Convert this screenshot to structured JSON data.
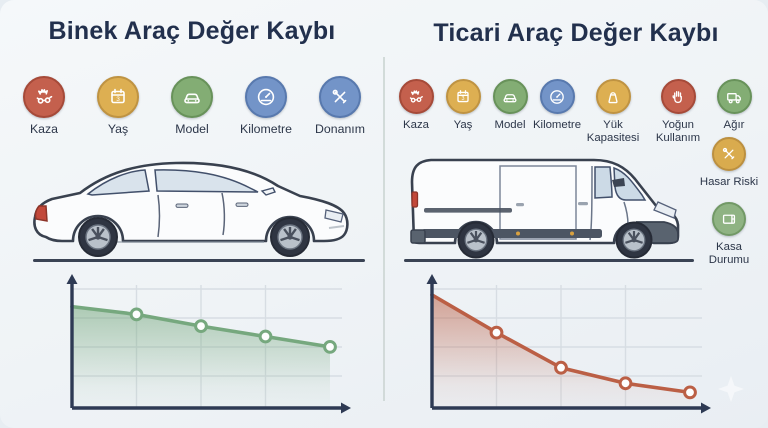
{
  "panels": [
    {
      "id": "binek",
      "title": "Binek Araç Değer Kaybı",
      "vehicle": "sedan",
      "factors": [
        {
          "icon": "crash-icon",
          "label": "Kaza",
          "color": "#c4604d",
          "border": "#a64a39"
        },
        {
          "icon": "calendar-icon",
          "label": "Yaş",
          "color": "#ddaf52",
          "border": "#bf9342"
        },
        {
          "icon": "car-icon",
          "label": "Model",
          "color": "#83ad74",
          "border": "#68925a"
        },
        {
          "icon": "speedometer-icon",
          "label": "Kilometre",
          "color": "#7394c8",
          "border": "#5879ae"
        },
        {
          "icon": "tools-icon",
          "label": "Donanım",
          "color": "#7394c8",
          "border": "#5879ae"
        }
      ],
      "side_factors": []
    },
    {
      "id": "ticari",
      "title": "Ticari Araç Değer Kaybı",
      "vehicle": "van",
      "factors": [
        {
          "icon": "crash-icon",
          "label": "Kaza",
          "color": "#c4604d",
          "border": "#a64a39"
        },
        {
          "icon": "calendar-icon",
          "label": "Yaş",
          "color": "#ddaf52",
          "border": "#bf9342"
        },
        {
          "icon": "car-icon",
          "label": "Model",
          "color": "#83ad74",
          "border": "#68925a"
        },
        {
          "icon": "speedometer-icon",
          "label": "Kilometre",
          "color": "#7394c8",
          "border": "#5879ae"
        },
        {
          "icon": "weight-icon",
          "label": "Yük Kapasitesi",
          "color": "#ddaf52",
          "border": "#bf9342"
        },
        {
          "icon": "hand-icon",
          "label": "Yoğun Kullanım",
          "color": "#c4604d",
          "border": "#a64a39"
        },
        {
          "icon": "truck-icon",
          "label": "Ağır",
          "color": "#83ad74",
          "border": "#68925a"
        }
      ],
      "side_factors": [
        {
          "icon": "repair-tools-icon",
          "label": "Hasar Riski",
          "color": "#d9ab4e",
          "border": "#bc9040"
        },
        {
          "icon": "cargo-box-icon",
          "label": "Kasa Durumu",
          "color": "#8fb383",
          "border": "#729966"
        }
      ]
    }
  ],
  "chart_data": [
    {
      "type": "area",
      "panel": "Binek Araç Değer Kaybı",
      "x": [
        0,
        1,
        2,
        3,
        4
      ],
      "values": [
        78,
        72,
        63,
        55,
        47
      ],
      "line_color": "#76a87e",
      "ylim": [
        0,
        100
      ],
      "grid": true,
      "markers": true,
      "tick_labels_visible": false,
      "axis_color": "#2e3a54"
    },
    {
      "type": "area",
      "panel": "Ticari Araç Değer Kaybı",
      "x": [
        0,
        1,
        2,
        3,
        4
      ],
      "values": [
        87,
        58,
        31,
        19,
        12
      ],
      "line_color": "#bb5f45",
      "ylim": [
        0,
        100
      ],
      "grid": true,
      "markers": true,
      "tick_labels_visible": false,
      "axis_color": "#2e3a54"
    }
  ]
}
